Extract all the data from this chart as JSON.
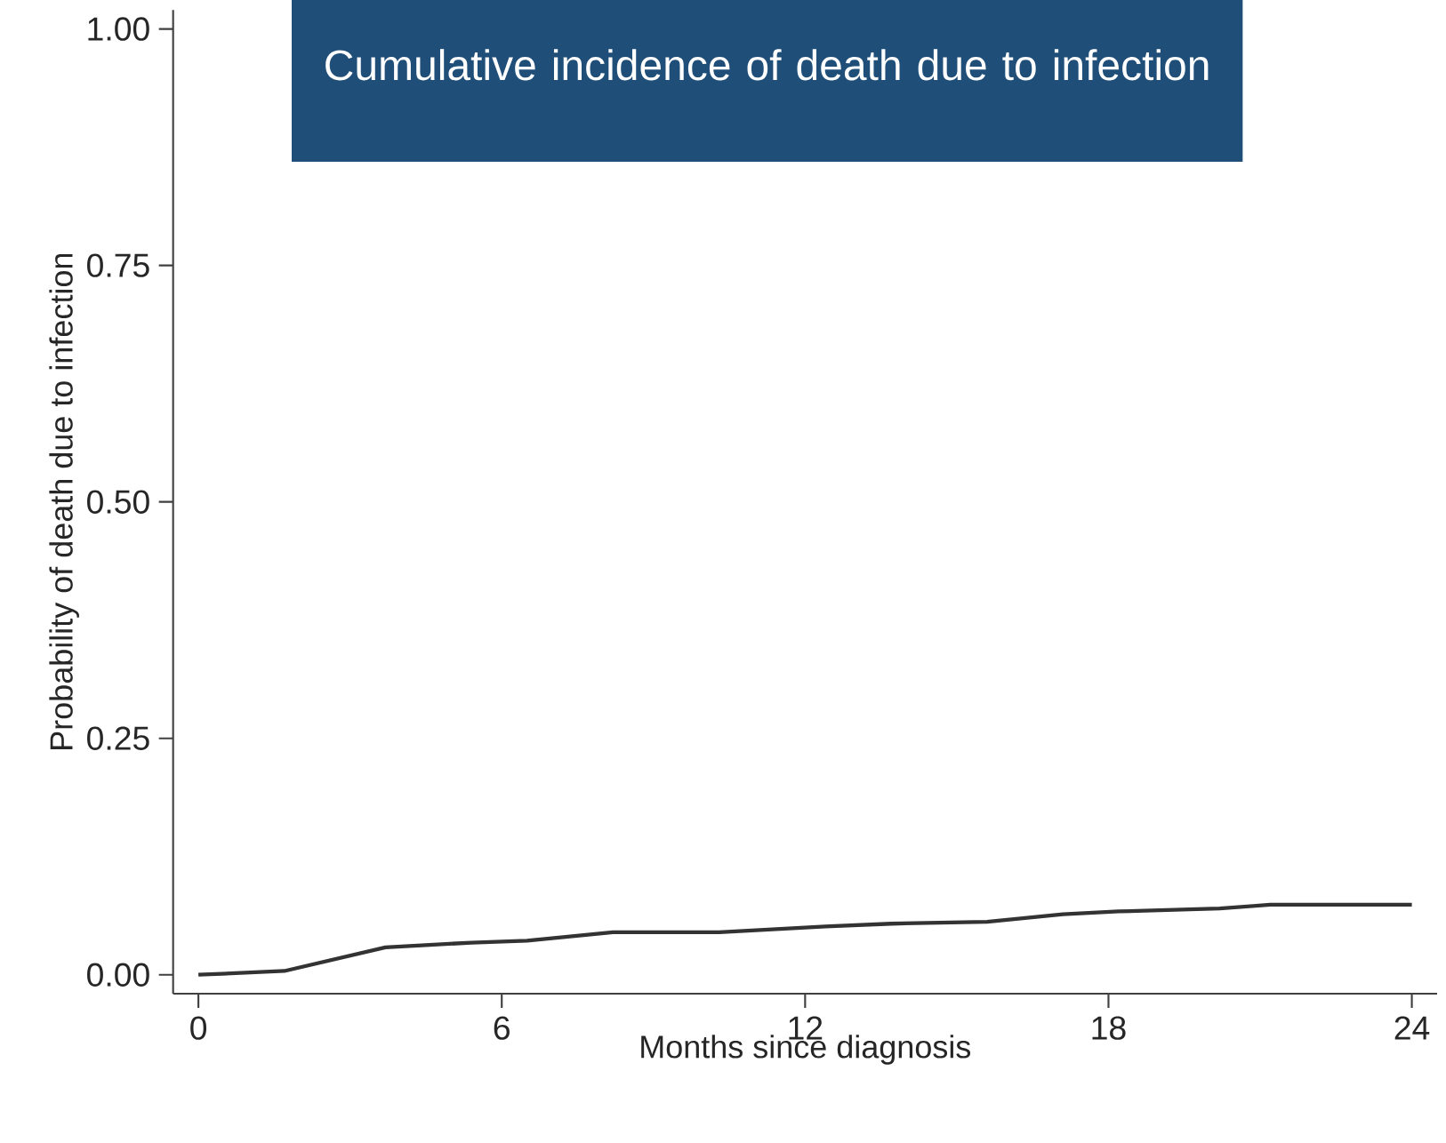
{
  "chart_data": {
    "type": "line",
    "title": "Cumulative incidence of death due to infection",
    "xlabel": "Months since diagnosis",
    "ylabel": "Probability of death due to infection",
    "x": [
      0,
      1.7,
      3.7,
      5.4,
      6.5,
      8.2,
      10.3,
      12.4,
      13.7,
      15.6,
      17.1,
      18.2,
      20.2,
      21.2,
      24
    ],
    "series": [
      {
        "color": "#333333",
        "values": [
          0,
          0.004,
          0.029,
          0.034,
          0.036,
          0.045,
          0.045,
          0.051,
          0.054,
          0.056,
          0.064,
          0.067,
          0.07,
          0.074,
          0.074
        ]
      }
    ],
    "xlim": [
      -0.5,
      24.5
    ],
    "ylim": [
      -0.02,
      1.02
    ],
    "xticks": [
      0,
      6,
      12,
      18,
      24
    ],
    "yticks": [
      {
        "value": 0,
        "label": "0.00"
      },
      {
        "value": 0.25,
        "label": "0.25"
      },
      {
        "value": 0.5,
        "label": "0.50"
      },
      {
        "value": 0.75,
        "label": "0.75"
      },
      {
        "value": 1,
        "label": "1.00"
      }
    ],
    "grid": false
  }
}
